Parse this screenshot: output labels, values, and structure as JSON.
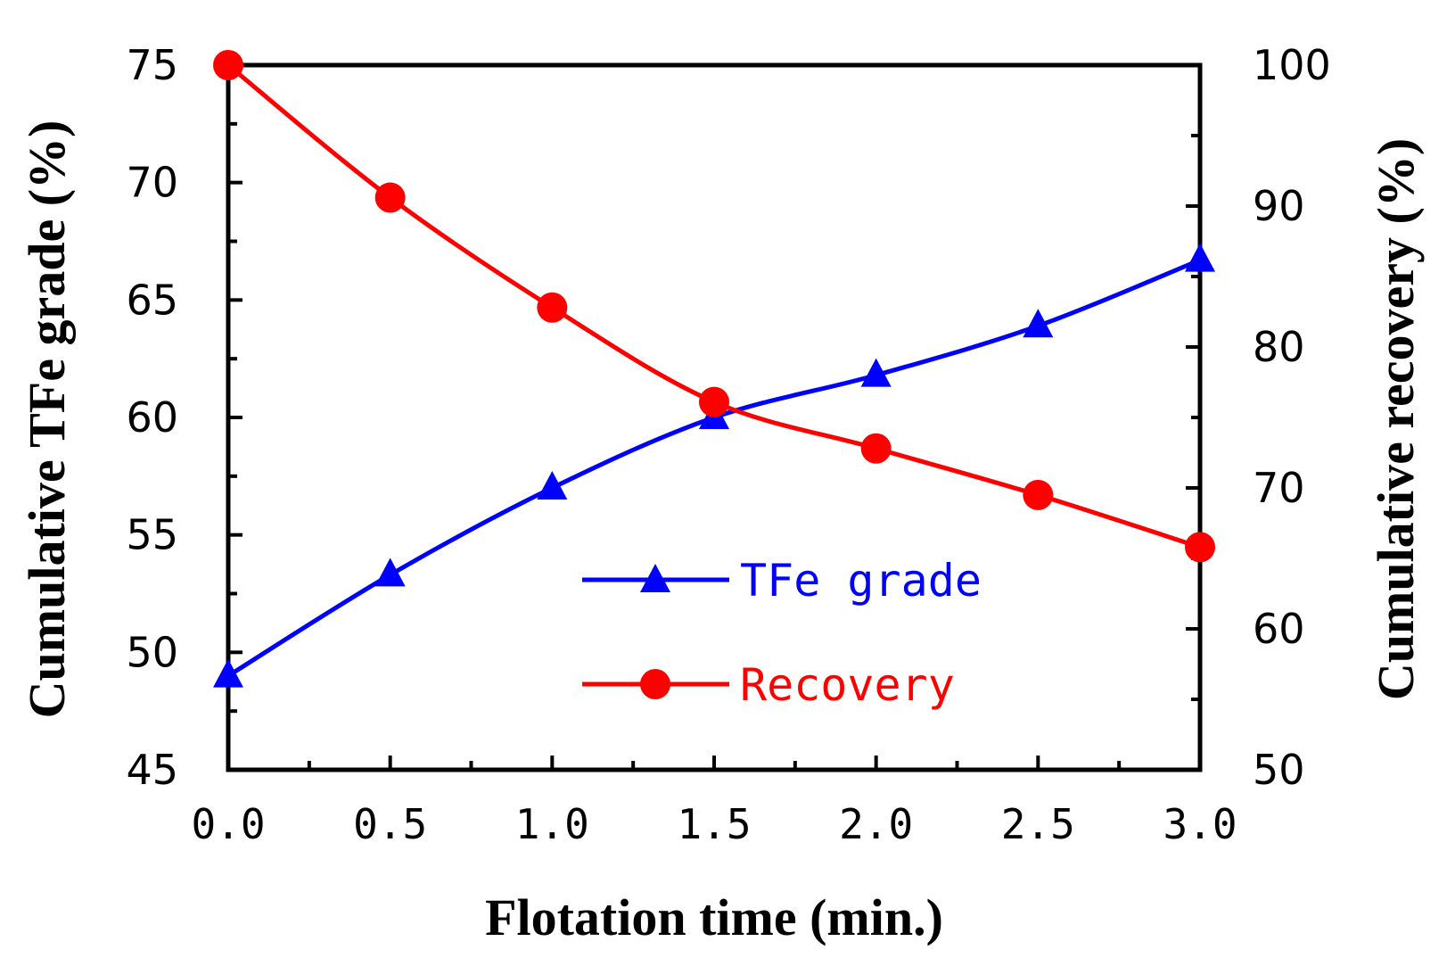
{
  "chart_data": {
    "type": "line",
    "title": "",
    "xlabel": "Flotation time (min.)",
    "ylabel": "Cumulative TFe grade (%)",
    "y2label": "Cumulative recovery (%)",
    "x": [
      0.0,
      0.5,
      1.0,
      1.5,
      2.0,
      2.5,
      3.0
    ],
    "xlim": [
      0.0,
      3.0
    ],
    "xticks": [
      "0.0",
      "0.5",
      "1.0",
      "1.5",
      "2.0",
      "2.5",
      "3.0"
    ],
    "ylim": [
      45,
      75
    ],
    "yticks": [
      "45",
      "50",
      "55",
      "60",
      "65",
      "70",
      "75"
    ],
    "y2lim": [
      50,
      100
    ],
    "y2ticks": [
      "50",
      "60",
      "70",
      "80",
      "90",
      "100"
    ],
    "grid": false,
    "legend_position": "center",
    "series": [
      {
        "name": "TFe grade",
        "axis": "left",
        "color": "#0000ff",
        "marker": "triangle",
        "values": [
          49.0,
          53.3,
          57.0,
          60.0,
          61.8,
          63.9,
          66.7
        ]
      },
      {
        "name": "Recovery",
        "axis": "right",
        "color": "#ff0000",
        "marker": "circle",
        "values": [
          100.0,
          90.6,
          82.8,
          76.1,
          72.8,
          69.5,
          65.8
        ]
      }
    ]
  }
}
